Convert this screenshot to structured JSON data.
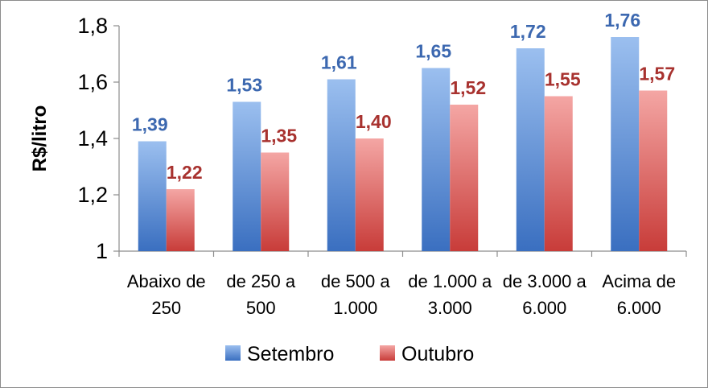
{
  "chart_data": {
    "type": "bar",
    "title": "",
    "xlabel": "",
    "ylabel": "R$/litro",
    "ylim": [
      1,
      1.8
    ],
    "yticks": [
      "1",
      "1,2",
      "1,4",
      "1,6",
      "1,8"
    ],
    "ytick_values": [
      1,
      1.2,
      1.4,
      1.6,
      1.8
    ],
    "categories": [
      [
        "Abaixo de",
        "250"
      ],
      [
        "de 250 a",
        "500"
      ],
      [
        "de 500 a",
        "1.000"
      ],
      [
        "de 1.000 a",
        "3.000"
      ],
      [
        "de 3.000 a",
        "6.000"
      ],
      [
        "Acima de",
        "6.000"
      ]
    ],
    "series": [
      {
        "name": "Setembro",
        "values": [
          1.39,
          1.53,
          1.61,
          1.65,
          1.72,
          1.76
        ],
        "labels": [
          "1,39",
          "1,53",
          "1,61",
          "1,65",
          "1,72",
          "1,76"
        ],
        "color": "#4a7ebb",
        "gradient": [
          "#9bbfef",
          "#3a6fc0"
        ],
        "label_color": "#3c68b0"
      },
      {
        "name": "Outubro",
        "values": [
          1.22,
          1.35,
          1.4,
          1.52,
          1.55,
          1.57
        ],
        "labels": [
          "1,22",
          "1,35",
          "1,40",
          "1,52",
          "1,55",
          "1,57"
        ],
        "color": "#c0504d",
        "gradient": [
          "#f4a6a4",
          "#c83c39"
        ],
        "label_color": "#a8322f"
      }
    ],
    "grid": false,
    "legend_position": "bottom"
  }
}
